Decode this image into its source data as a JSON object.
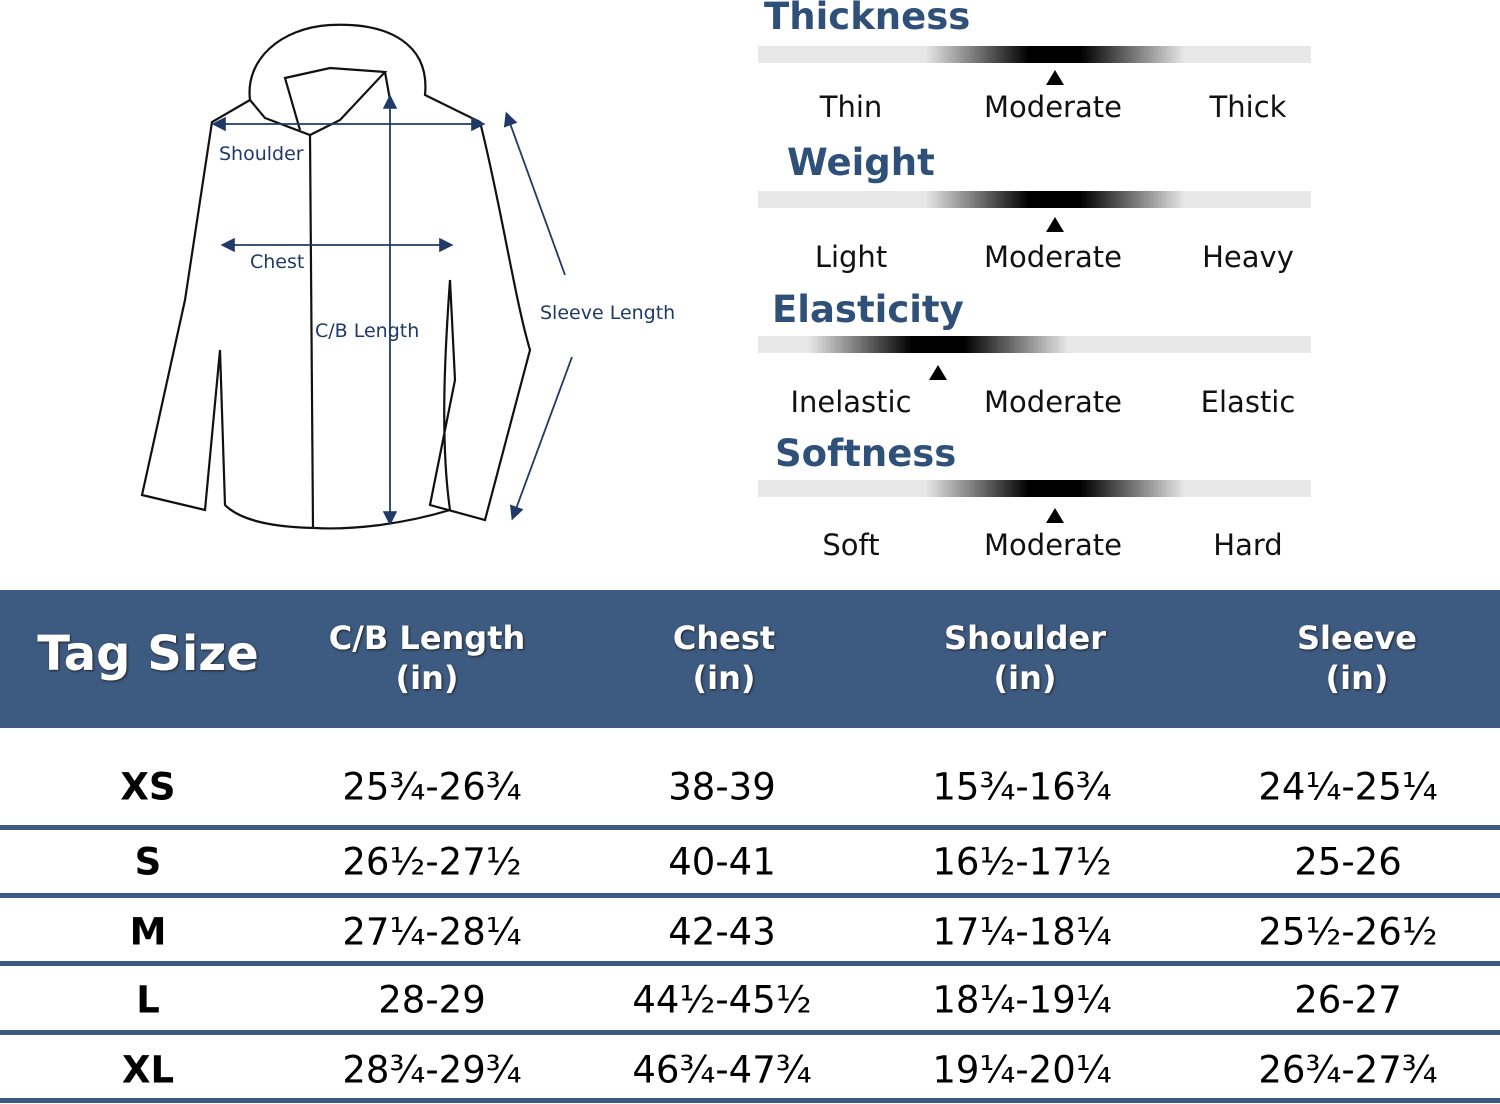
{
  "diagram": {
    "labels": {
      "shoulder": "Shoulder",
      "chest": "Chest",
      "cb_length": "C/B Length",
      "sleeve_length": "Sleeve Length"
    },
    "line_color": "#1f3a66"
  },
  "attributes": [
    {
      "title": "Thickness",
      "options": [
        "Thin",
        "Moderate",
        "Thick"
      ],
      "selected": "Moderate"
    },
    {
      "title": "Weight",
      "options": [
        "Light",
        "Moderate",
        "Heavy"
      ],
      "selected": "Moderate"
    },
    {
      "title": "Elasticity",
      "options": [
        "Inelastic",
        "Moderate",
        "Elastic"
      ],
      "selected": "Between Inelastic and Moderate"
    },
    {
      "title": "Softness",
      "options": [
        "Soft",
        "Moderate",
        "Hard"
      ],
      "selected": "Moderate"
    }
  ],
  "table": {
    "header_color": "#3d5a80",
    "headers": [
      {
        "line1": "Tag Size",
        "line2": ""
      },
      {
        "line1": "C/B Length",
        "line2": "(in)"
      },
      {
        "line1": "Chest",
        "line2": "(in)"
      },
      {
        "line1": "Shoulder",
        "line2": "(in)"
      },
      {
        "line1": "Sleeve",
        "line2": "(in)"
      }
    ],
    "rows": [
      [
        "XS",
        "25¾-26¾",
        "38-39",
        "15¾-16¾",
        "24¼-25¼"
      ],
      [
        "S",
        "26½-27½",
        "40-41",
        "16½-17½",
        "25-26"
      ],
      [
        "M",
        "27¼-28¼",
        "42-43",
        "17¼-18¼",
        "25½-26½"
      ],
      [
        "L",
        "28-29",
        "44½-45½",
        "18¼-19¼",
        "26-27"
      ],
      [
        "XL",
        "28¾-29¾",
        "46¾-47¾",
        "19¼-20¼",
        "26¾-27¾"
      ]
    ]
  }
}
